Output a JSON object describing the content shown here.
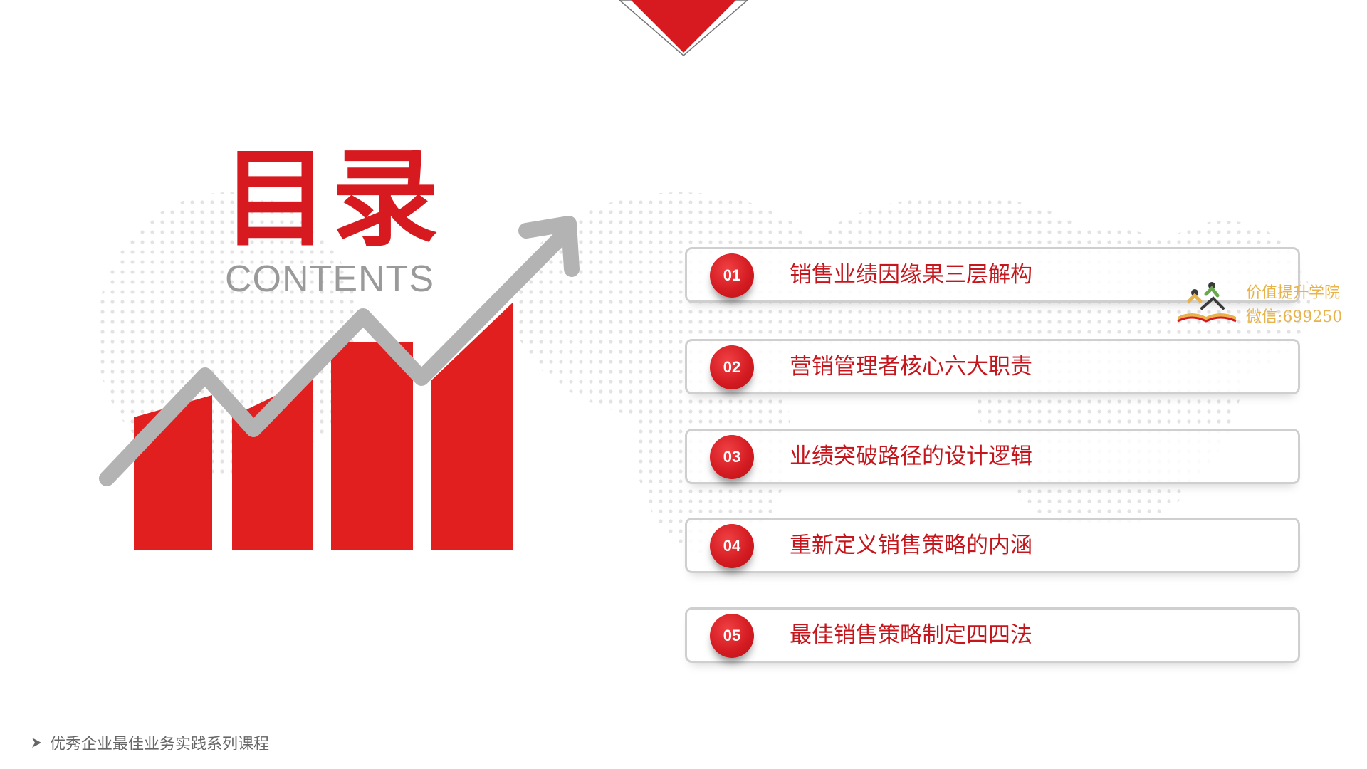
{
  "title": {
    "cn": "目录",
    "en": "CONTENTS"
  },
  "toc": {
    "items": [
      {
        "num": "01",
        "label": "销售业绩因缘果三层解构"
      },
      {
        "num": "02",
        "label": "营销管理者核心六大职责"
      },
      {
        "num": "03",
        "label": "业绩突破路径的设计逻辑"
      },
      {
        "num": "04",
        "label": "重新定义销售策略的内涵"
      },
      {
        "num": "05",
        "label": "最佳销售策略制定四四法"
      }
    ]
  },
  "watermark": {
    "line1": "价值提升学院",
    "line2": "微信:699250"
  },
  "footer": {
    "text": "优秀企业最佳业务实践系列课程"
  },
  "colors": {
    "accent": "#d61a1f",
    "arrow": "#b3b3b3",
    "border": "#cfcfcf"
  },
  "icons": {
    "footer": "chevron-right-icon",
    "watermark": "open-book-logo-icon"
  }
}
